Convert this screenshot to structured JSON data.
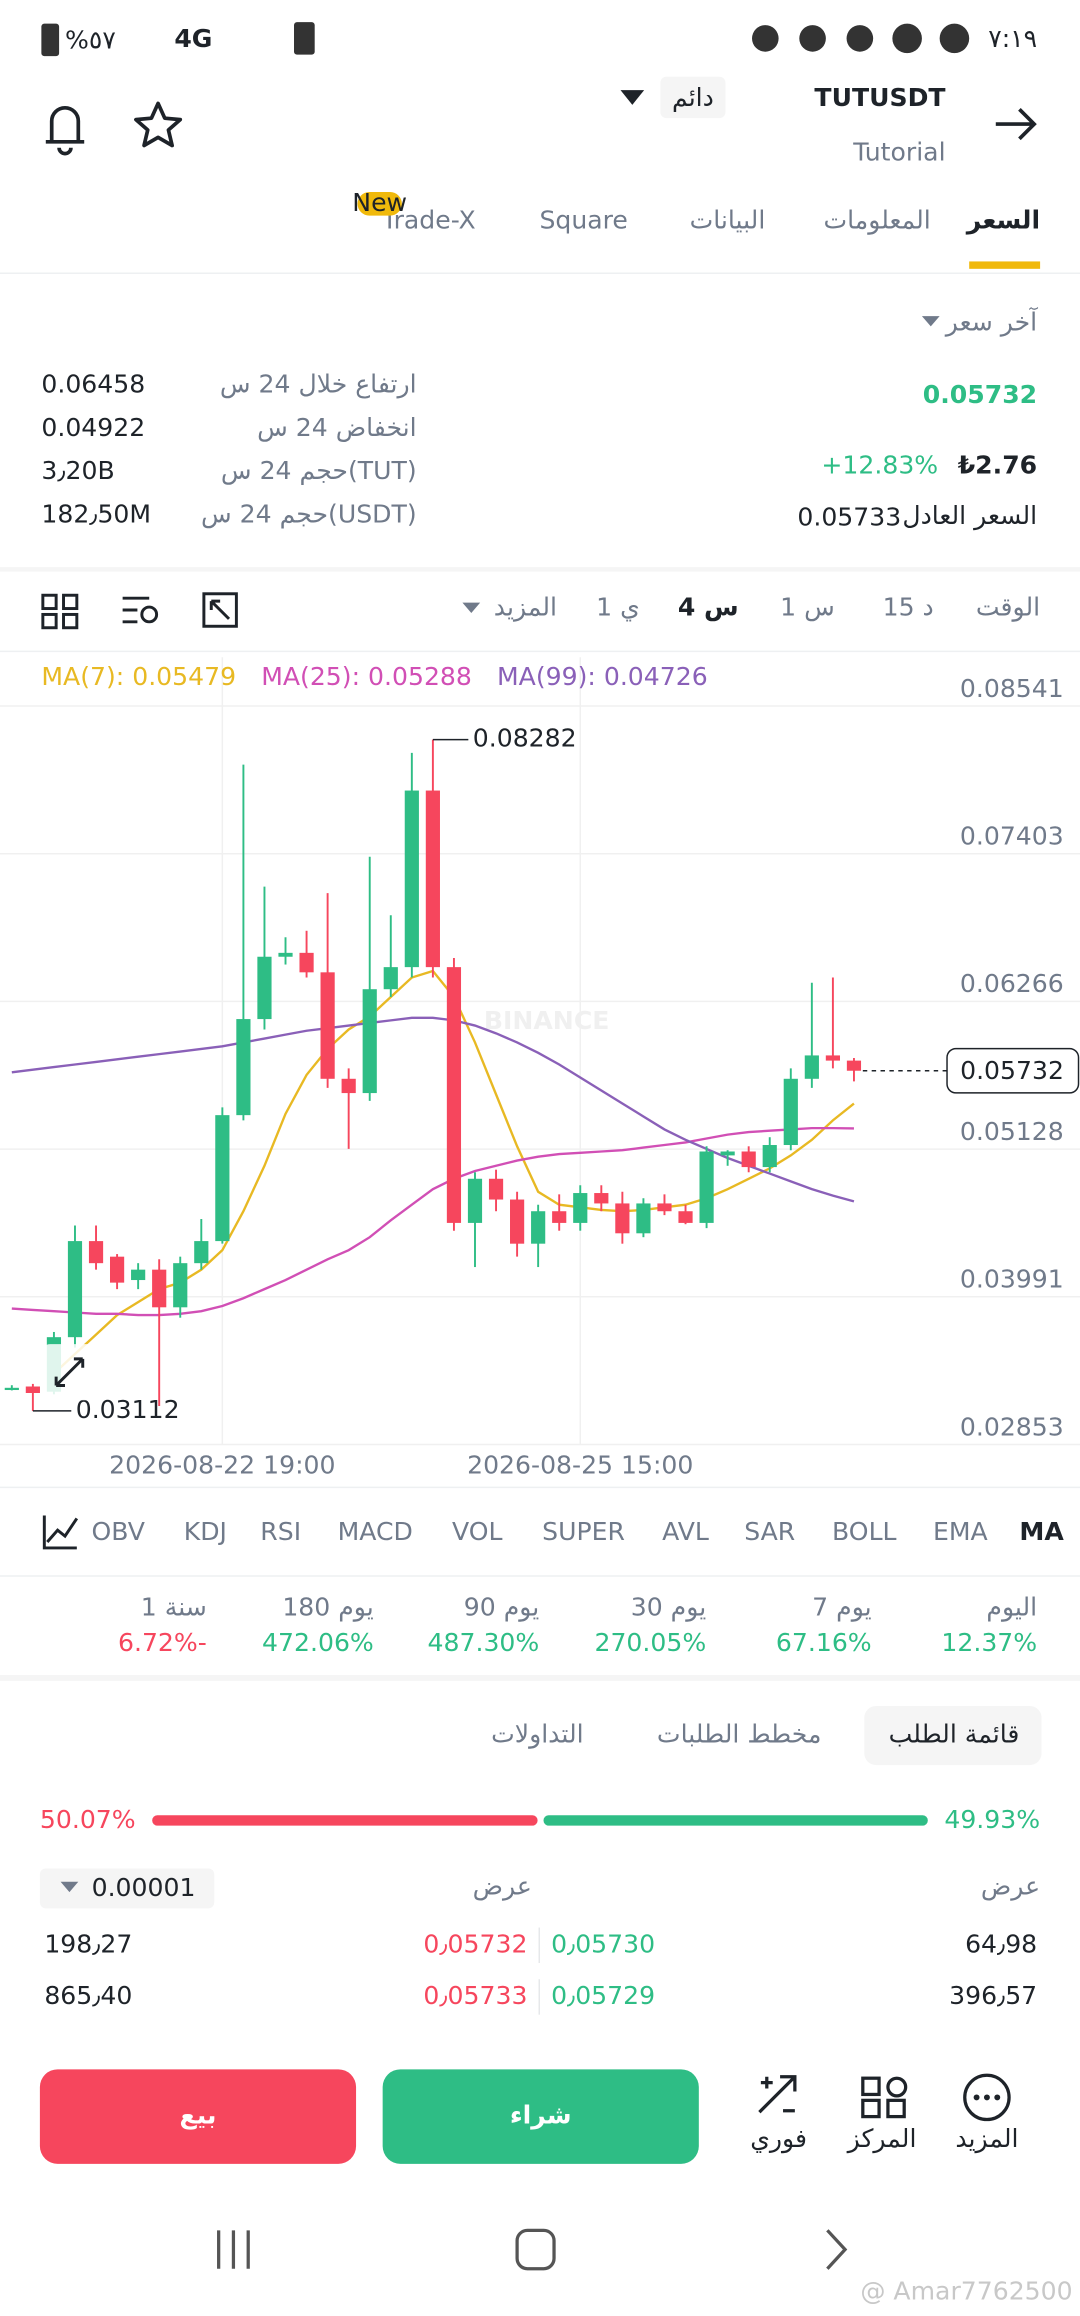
{
  "status_bar": {
    "time": "٧:١٩",
    "battery": "%٥٧",
    "network": "4G"
  },
  "header": {
    "symbol": "TUTUSDT",
    "badge": "دائم",
    "subtitle": "Tutorial"
  },
  "tabs": {
    "items": [
      "السعر",
      "المعلومات",
      "البيانات",
      "Square",
      "Trade-X"
    ],
    "new_badge": "New"
  },
  "price": {
    "last_price_label": "آخر سعر",
    "last_price": "0.05732",
    "change": "+12.83%",
    "local_price": "₺2.76",
    "fair_price_label": "السعر العادل",
    "fair_price": "0.05733"
  },
  "stats": [
    {
      "label": "ارتفاع خلال 24 س",
      "value": "0.06458"
    },
    {
      "label": "انخفاض 24 س",
      "value": "0.04922"
    },
    {
      "label": "حجم 24 س(TUT)",
      "value": "3٫20B"
    },
    {
      "label": "حجم 24 س(USDT)",
      "value": "182٫50M"
    }
  ],
  "intervals": {
    "label": "الوقت",
    "items": [
      "15 د",
      "1 س",
      "4 س",
      "1 ي"
    ],
    "more": "المزيد"
  },
  "chart_data": {
    "type": "candlestick",
    "watermark": "BINANCE",
    "categories": [
      null,
      null,
      null,
      null,
      null,
      null,
      null,
      null,
      null,
      null,
      "2026-08-22 19:00",
      null,
      null,
      null,
      null,
      null,
      null,
      null,
      null,
      null,
      null,
      null,
      null,
      null,
      null,
      null,
      null,
      "2026-08-25 15:00",
      null,
      null,
      null,
      null,
      null,
      null,
      null,
      null,
      null,
      null,
      null,
      null,
      null
    ],
    "open": [
      0.0328,
      0.033,
      0.0326,
      0.0368,
      0.0442,
      0.043,
      0.0412,
      0.042,
      0.0391,
      0.0425,
      0.0442,
      0.0539,
      0.0613,
      0.0661,
      0.0664,
      0.0649,
      0.0567,
      0.0556,
      0.0636,
      0.0653,
      0.0789,
      0.0653,
      0.0456,
      0.049,
      0.0474,
      0.044,
      0.0465,
      0.0456,
      0.0479,
      0.0471,
      0.0448,
      0.0471,
      0.0465,
      0.0456,
      0.0508,
      0.0511,
      0.0499,
      0.0516,
      0.0567,
      0.0585,
      0.0581
    ],
    "high": [
      0.0331,
      0.0332,
      0.0372,
      0.0454,
      0.0454,
      0.0432,
      0.0425,
      0.0428,
      0.043,
      0.0459,
      0.0545,
      0.0809,
      0.0715,
      0.0676,
      0.0681,
      0.071,
      0.0575,
      0.0738,
      0.0693,
      0.0818,
      0.08282,
      0.066,
      0.0495,
      0.0497,
      0.048,
      0.047,
      0.0478,
      0.0485,
      0.0485,
      0.048,
      0.0475,
      0.0478,
      0.047,
      0.0515,
      0.0512,
      0.0515,
      0.0522,
      0.0575,
      0.0641,
      0.0645,
      0.0583
    ],
    "low": [
      0.0327,
      0.03112,
      0.0324,
      0.036,
      0.042,
      0.0405,
      0.0405,
      0.0315,
      0.0383,
      0.042,
      0.044,
      0.0535,
      0.0605,
      0.0655,
      0.0645,
      0.056,
      0.0513,
      0.055,
      0.063,
      0.0645,
      0.0645,
      0.045,
      0.0422,
      0.0465,
      0.043,
      0.0422,
      0.045,
      0.045,
      0.0465,
      0.044,
      0.0445,
      0.0462,
      0.0455,
      0.0452,
      0.05,
      0.0495,
      0.0495,
      0.0512,
      0.056,
      0.0575,
      0.0565
    ],
    "close": [
      0.0329,
      0.0325,
      0.0368,
      0.0442,
      0.0425,
      0.041,
      0.042,
      0.0391,
      0.0425,
      0.0442,
      0.0539,
      0.0613,
      0.0661,
      0.0664,
      0.0649,
      0.0567,
      0.0556,
      0.0636,
      0.0653,
      0.0789,
      0.0653,
      0.0456,
      0.049,
      0.0474,
      0.044,
      0.0465,
      0.0456,
      0.0479,
      0.0471,
      0.0448,
      0.0471,
      0.0465,
      0.0456,
      0.0511,
      0.0511,
      0.0499,
      0.0516,
      0.0567,
      0.0585,
      0.0581,
      0.05732
    ],
    "up_color": "#2ebd85",
    "down_color": "#f6465d",
    "series": [
      {
        "name": "MA(7): 0.05479",
        "color": "#e8b923",
        "values": [
          null,
          null,
          0.034,
          0.0355,
          0.037,
          0.0385,
          0.0395,
          0.0405,
          0.041,
          0.042,
          0.0435,
          0.0465,
          0.05,
          0.054,
          0.057,
          0.059,
          0.0605,
          0.0615,
          0.063,
          0.0645,
          0.065,
          0.063,
          0.0595,
          0.0555,
          0.0515,
          0.048,
          0.047,
          0.0468,
          0.0466,
          0.0465,
          0.0466,
          0.0468,
          0.047,
          0.0475,
          0.0482,
          0.049,
          0.0498,
          0.0508,
          0.052,
          0.0535,
          0.05479
        ]
      },
      {
        "name": "MA(25): 0.05288",
        "color": "#d14fb5",
        "values": [
          0.039,
          0.0389,
          0.0388,
          0.0387,
          0.0386,
          0.0386,
          0.0385,
          0.0385,
          0.0386,
          0.0388,
          0.0392,
          0.0398,
          0.0405,
          0.0412,
          0.042,
          0.0428,
          0.0435,
          0.0445,
          0.0458,
          0.047,
          0.0482,
          0.049,
          0.0496,
          0.05,
          0.0504,
          0.0507,
          0.0509,
          0.051,
          0.0511,
          0.0512,
          0.0514,
          0.0516,
          0.0518,
          0.0521,
          0.0524,
          0.0526,
          0.0527,
          0.0528,
          0.0529,
          0.0529,
          0.05288
        ]
      },
      {
        "name": "MA(99): 0.04726",
        "color": "#8a60b8",
        "values": [
          0.0572,
          0.0574,
          0.0576,
          0.0578,
          0.058,
          0.0582,
          0.0584,
          0.0586,
          0.0588,
          0.059,
          0.0592,
          0.0595,
          0.0598,
          0.0601,
          0.0604,
          0.0606,
          0.0608,
          0.061,
          0.0612,
          0.0614,
          0.0614,
          0.0612,
          0.0608,
          0.0602,
          0.0595,
          0.0587,
          0.0578,
          0.0568,
          0.0558,
          0.0548,
          0.0538,
          0.0528,
          0.052,
          0.0513,
          0.0506,
          0.05,
          0.0494,
          0.0488,
          0.0482,
          0.0477,
          0.04726
        ]
      }
    ],
    "ylim": [
      0.02853,
      0.08541
    ],
    "yticks": [
      0.02853,
      0.03991,
      0.05128,
      0.06266,
      0.07403,
      0.08541
    ],
    "grid": true
  },
  "indicators": [
    "MA",
    "EMA",
    "BOLL",
    "SAR",
    "AVL",
    "SUPER",
    "VOL",
    "MACD",
    "RSI",
    "KDJ",
    "OBV"
  ],
  "performance": {
    "labels": [
      "اليوم",
      "7 يوم",
      "30 يوم",
      "90 يوم",
      "180 يوم",
      "1 سنة"
    ],
    "values": [
      "12.37%",
      "67.16%",
      "270.05%",
      "487.30%",
      "472.06%",
      "6.72%-"
    ],
    "value_colors": [
      "#2ebd85",
      "#2ebd85",
      "#2ebd85",
      "#2ebd85",
      "#2ebd85",
      "#f6465d"
    ]
  },
  "order_book": {
    "tabs": [
      "قائمة الطلب",
      "مخطط الطلبات",
      "التداولات"
    ],
    "depth": {
      "values": [
        50.07,
        49.93
      ],
      "value_labels": [
        "50.07%",
        "49.93%"
      ]
    },
    "precision": "0.00001",
    "columns": [
      "عرض",
      "عرض"
    ],
    "rows": [
      [
        "198٫27",
        "0٫05732",
        "0٫05730",
        "64٫98"
      ],
      [
        "865٫40",
        "0٫05733",
        "0٫05729",
        "396٫57"
      ]
    ]
  },
  "actions": {
    "sell": "بيع",
    "buy": "شراء",
    "shortcuts": [
      "فوري",
      "المركز",
      "المزيد"
    ]
  },
  "watermark": "@ Amar7762500"
}
